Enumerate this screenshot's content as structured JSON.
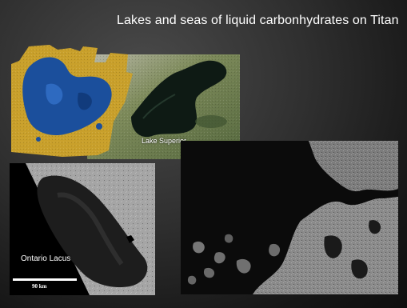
{
  "slide": {
    "title": "Lakes and seas of liquid carbonhydrates on Titan"
  },
  "images": {
    "comparison": {
      "label": "Lake Superior"
    },
    "ontario": {
      "label": "Ontario Lacus",
      "scale_label": "90 km"
    },
    "radar": {}
  },
  "colors": {
    "background": "#2a2a2a",
    "titan_land": "#c9a02b",
    "titan_lake": "#1b4f9c",
    "superior_water": "#0e1a14",
    "superior_land": "#6f8250"
  }
}
